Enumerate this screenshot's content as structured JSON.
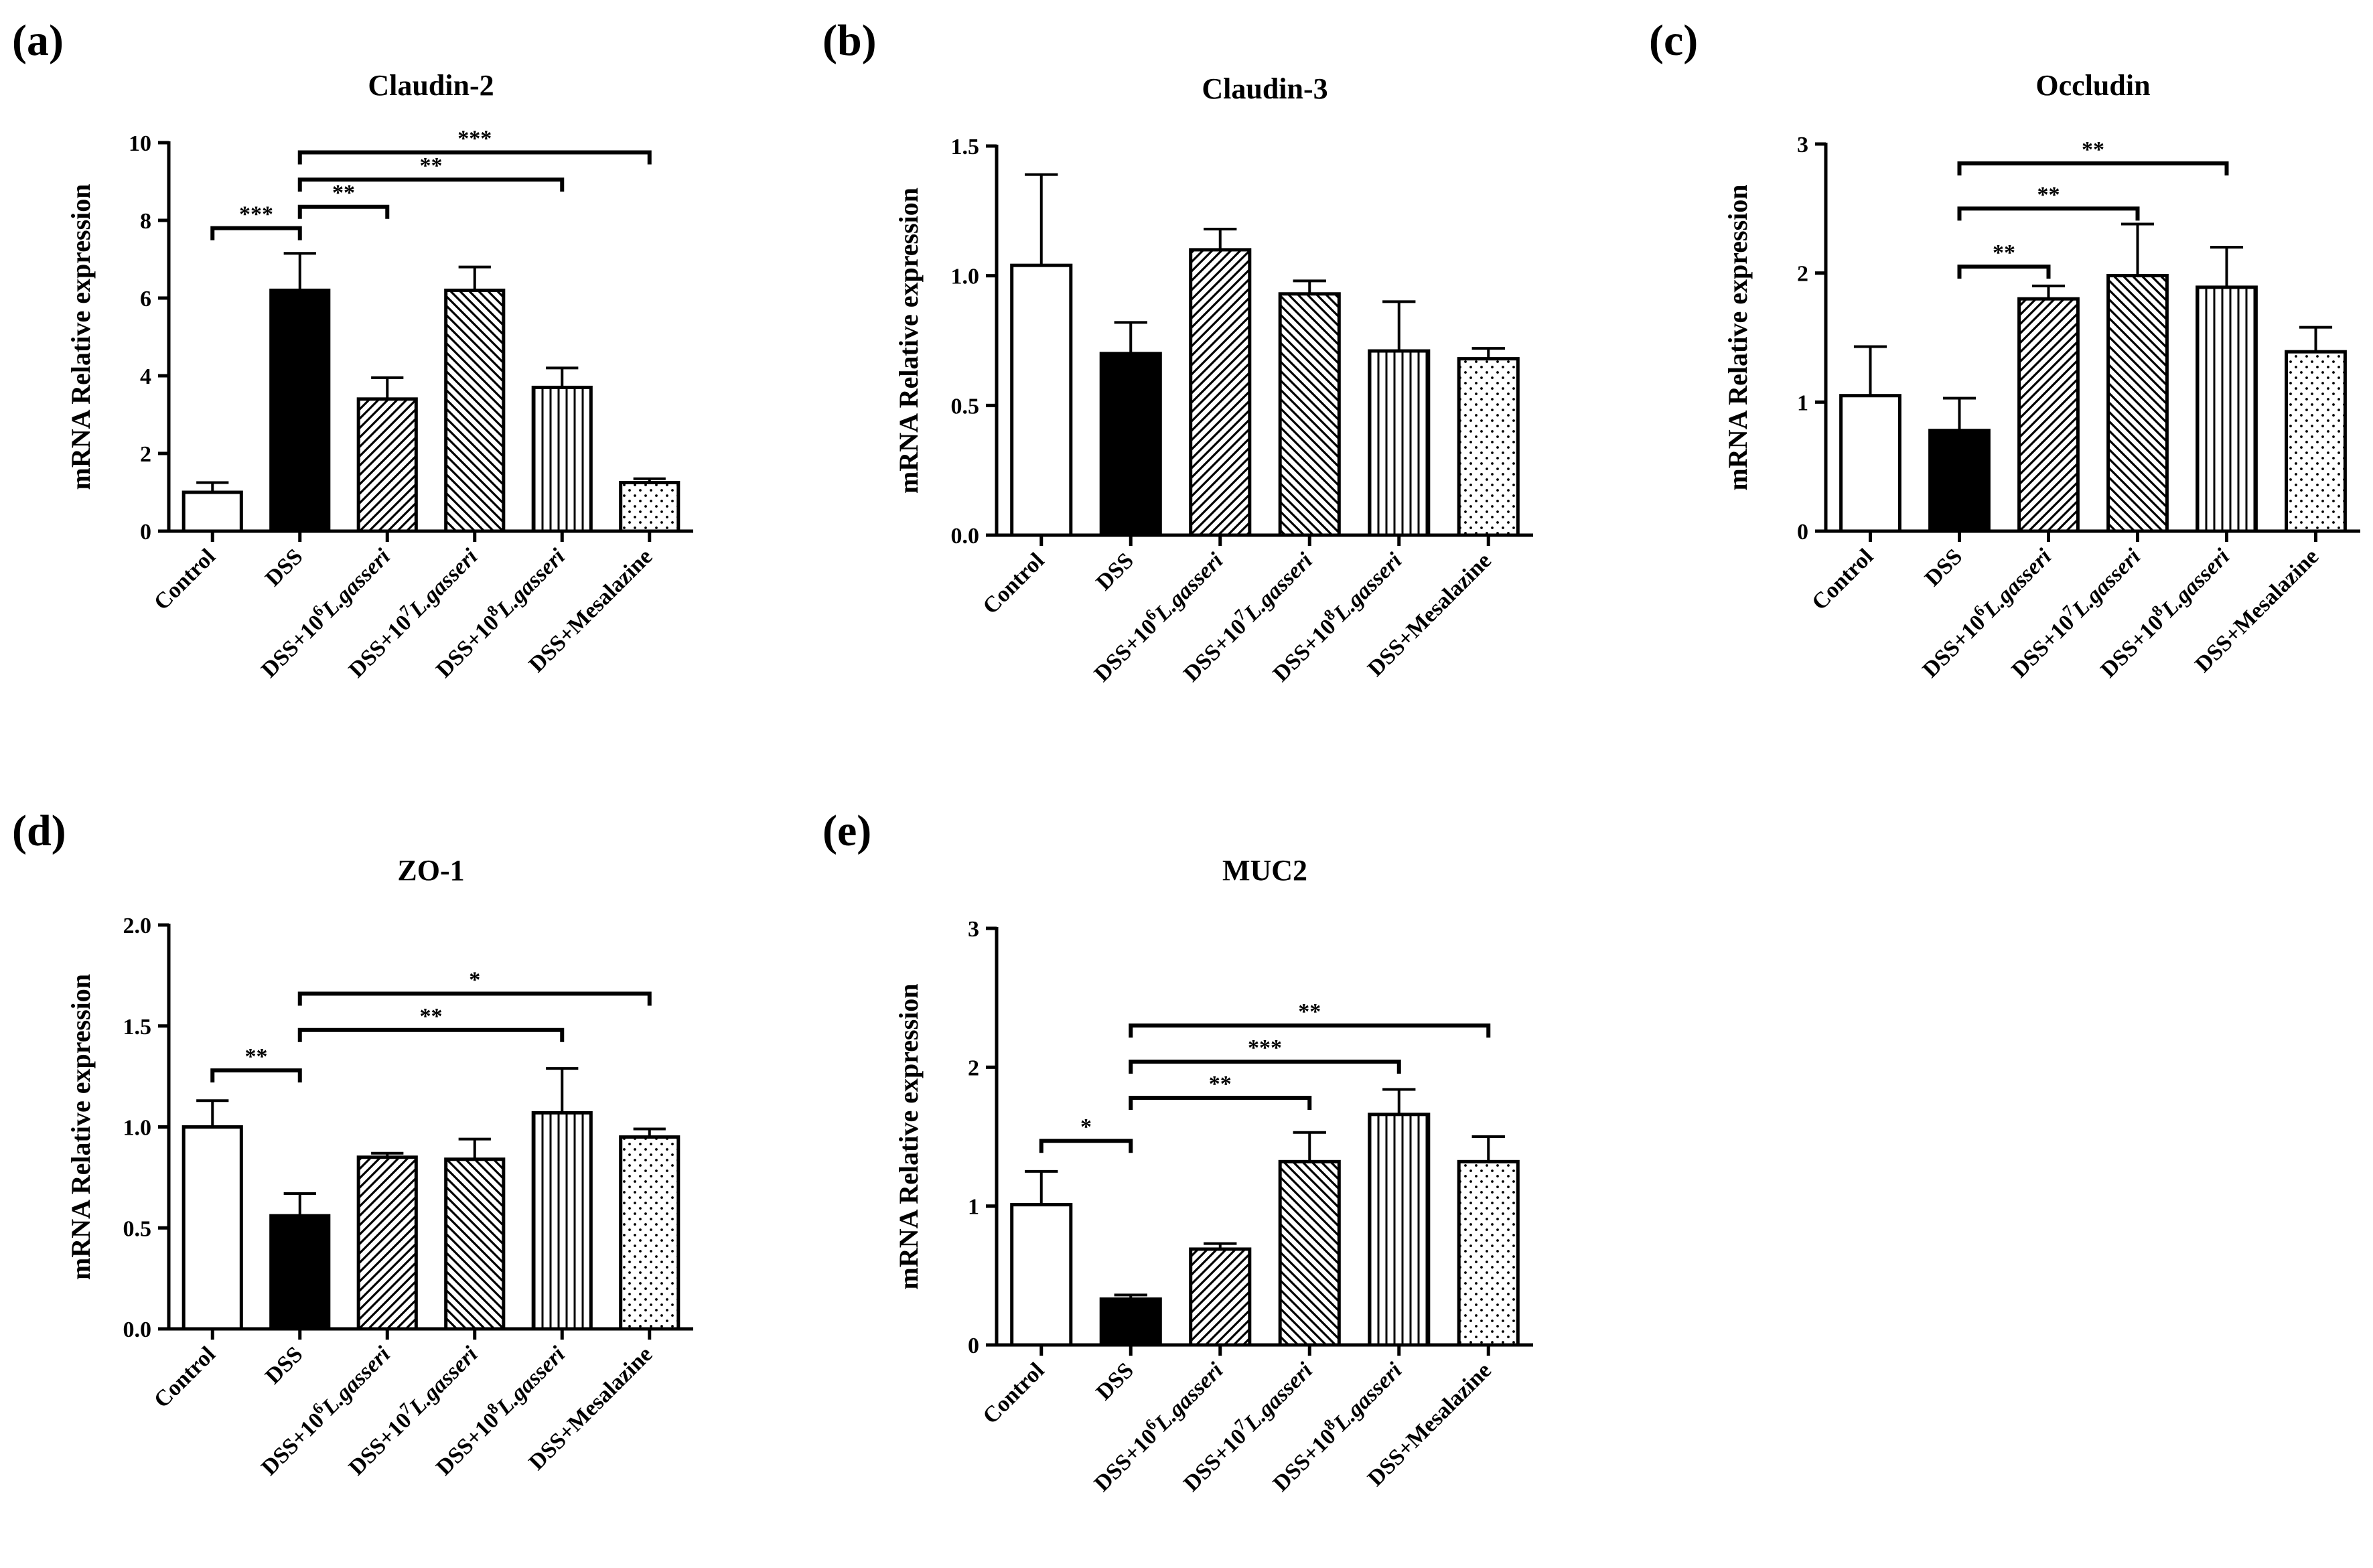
{
  "figure": {
    "description_free": true
  },
  "patterns": {
    "Control": "none",
    "DSS": "solid",
    "DSS+10^6 L.gasseri": "diag-right",
    "DSS+10^7 L.gasseri": "diag-left",
    "DSS+10^8 L.gasseri": "vertical",
    "DSS+Mesalazine": "dots"
  },
  "colors": {
    "ink": "#000000",
    "paper": "#ffffff"
  },
  "chart_data": [
    {
      "panel": "(a)",
      "type": "bar",
      "title": "Claudin-2",
      "ylabel": "mRNA Relative expression",
      "xlabel": "",
      "categories": [
        {
          "pre": "Control",
          "sup": "",
          "italic": ""
        },
        {
          "pre": "DSS",
          "sup": "",
          "italic": ""
        },
        {
          "pre": "DSS+10",
          "sup": "6",
          "italic": "L.gasseri"
        },
        {
          "pre": "DSS+10",
          "sup": "7",
          "italic": "L.gasseri"
        },
        {
          "pre": "DSS+10",
          "sup": "8",
          "italic": "L.gasseri"
        },
        {
          "pre": "DSS+Mesalazine",
          "sup": "",
          "italic": ""
        }
      ],
      "values": [
        1.0,
        6.2,
        3.4,
        6.2,
        3.7,
        1.25
      ],
      "errors": [
        0.25,
        0.95,
        0.55,
        0.6,
        0.5,
        0.1
      ],
      "ylim": [
        0,
        10
      ],
      "yticks": [
        0,
        2,
        4,
        6,
        8,
        10
      ],
      "ytick_labels": [
        "0",
        "2",
        "4",
        "6",
        "8",
        "10"
      ],
      "significance": [
        {
          "from": 0,
          "to": 1,
          "level": 7.8,
          "label": "***"
        },
        {
          "from": 1,
          "to": 2,
          "level": 8.35,
          "label": "**"
        },
        {
          "from": 1,
          "to": 4,
          "level": 9.05,
          "label": "**"
        },
        {
          "from": 1,
          "to": 5,
          "level": 9.75,
          "label": "***"
        }
      ]
    },
    {
      "panel": "(b)",
      "type": "bar",
      "title": "Claudin-3",
      "ylabel": "mRNA Relative expression",
      "xlabel": "",
      "categories": [
        {
          "pre": "Control",
          "sup": "",
          "italic": ""
        },
        {
          "pre": "DSS",
          "sup": "",
          "italic": ""
        },
        {
          "pre": "DSS+10",
          "sup": "6",
          "italic": "L.gasseri"
        },
        {
          "pre": "DSS+10",
          "sup": "7",
          "italic": "L.gasseri"
        },
        {
          "pre": "DSS+10",
          "sup": "8",
          "italic": "L.gasseri"
        },
        {
          "pre": "DSS+Mesalazine",
          "sup": "",
          "italic": ""
        }
      ],
      "values": [
        1.04,
        0.7,
        1.1,
        0.93,
        0.71,
        0.68
      ],
      "errors": [
        0.35,
        0.12,
        0.08,
        0.05,
        0.19,
        0.04
      ],
      "ylim": [
        0,
        1.5
      ],
      "yticks": [
        0,
        0.5,
        1.0,
        1.5
      ],
      "ytick_labels": [
        "0.0",
        "0.5",
        "1.0",
        "1.5"
      ],
      "significance": []
    },
    {
      "panel": "(c)",
      "type": "bar",
      "title": "Occludin",
      "ylabel": "mRNA Relative expression",
      "xlabel": "",
      "categories": [
        {
          "pre": "Control",
          "sup": "",
          "italic": ""
        },
        {
          "pre": "DSS",
          "sup": "",
          "italic": ""
        },
        {
          "pre": "DSS+10",
          "sup": "6",
          "italic": "L.gasseri"
        },
        {
          "pre": "DSS+10",
          "sup": "7",
          "italic": "L.gasseri"
        },
        {
          "pre": "DSS+10",
          "sup": "8",
          "italic": "L.gasseri"
        },
        {
          "pre": "DSS+Mesalazine",
          "sup": "",
          "italic": ""
        }
      ],
      "values": [
        1.05,
        0.78,
        1.8,
        1.98,
        1.89,
        1.39
      ],
      "errors": [
        0.38,
        0.25,
        0.1,
        0.4,
        0.31,
        0.19
      ],
      "ylim": [
        0,
        3
      ],
      "yticks": [
        0,
        1,
        2,
        3
      ],
      "ytick_labels": [
        "0",
        "1",
        "2",
        "3"
      ],
      "significance": [
        {
          "from": 1,
          "to": 2,
          "level": 2.05,
          "label": "**"
        },
        {
          "from": 1,
          "to": 3,
          "level": 2.5,
          "label": "**"
        },
        {
          "from": 1,
          "to": 4,
          "level": 2.85,
          "label": "**"
        }
      ]
    },
    {
      "panel": "(d)",
      "type": "bar",
      "title": "ZO-1",
      "ylabel": "mRNA Relative expression",
      "xlabel": "",
      "categories": [
        {
          "pre": "Control",
          "sup": "",
          "italic": ""
        },
        {
          "pre": "DSS",
          "sup": "",
          "italic": ""
        },
        {
          "pre": "DSS+10",
          "sup": "6",
          "italic": "L.gasseri"
        },
        {
          "pre": "DSS+10",
          "sup": "7",
          "italic": "L.gasseri"
        },
        {
          "pre": "DSS+10",
          "sup": "8",
          "italic": "L.gasseri"
        },
        {
          "pre": "DSS+Mesalazine",
          "sup": "",
          "italic": ""
        }
      ],
      "values": [
        1.0,
        0.56,
        0.85,
        0.84,
        1.07,
        0.95
      ],
      "errors": [
        0.13,
        0.11,
        0.02,
        0.1,
        0.22,
        0.04
      ],
      "ylim": [
        0,
        2.0
      ],
      "yticks": [
        0,
        0.5,
        1.0,
        1.5,
        2.0
      ],
      "ytick_labels": [
        "0.0",
        "0.5",
        "1.0",
        "1.5",
        "2.0"
      ],
      "significance": [
        {
          "from": 0,
          "to": 1,
          "level": 1.28,
          "label": "**"
        },
        {
          "from": 1,
          "to": 4,
          "level": 1.48,
          "label": "**"
        },
        {
          "from": 1,
          "to": 5,
          "level": 1.66,
          "label": "*"
        }
      ]
    },
    {
      "panel": "(e)",
      "type": "bar",
      "title": "MUC2",
      "ylabel": "mRNA Relative expression",
      "xlabel": "",
      "categories": [
        {
          "pre": "Control",
          "sup": "",
          "italic": ""
        },
        {
          "pre": "DSS",
          "sup": "",
          "italic": ""
        },
        {
          "pre": "DSS+10",
          "sup": "6",
          "italic": "L.gasseri"
        },
        {
          "pre": "DSS+10",
          "sup": "7",
          "italic": "L.gasseri"
        },
        {
          "pre": "DSS+10",
          "sup": "8",
          "italic": "L.gasseri"
        },
        {
          "pre": "DSS+Mesalazine",
          "sup": "",
          "italic": ""
        }
      ],
      "values": [
        1.01,
        0.33,
        0.69,
        1.32,
        1.66,
        1.32
      ],
      "errors": [
        0.24,
        0.03,
        0.04,
        0.21,
        0.18,
        0.18
      ],
      "ylim": [
        0,
        3
      ],
      "yticks": [
        0,
        1,
        2,
        3
      ],
      "ytick_labels": [
        "0",
        "1",
        "2",
        "3"
      ],
      "significance": [
        {
          "from": 0,
          "to": 1,
          "level": 1.47,
          "label": "*"
        },
        {
          "from": 1,
          "to": 3,
          "level": 1.78,
          "label": "**"
        },
        {
          "from": 1,
          "to": 4,
          "level": 2.04,
          "label": "***"
        },
        {
          "from": 1,
          "to": 5,
          "level": 2.3,
          "label": "**"
        }
      ]
    }
  ]
}
